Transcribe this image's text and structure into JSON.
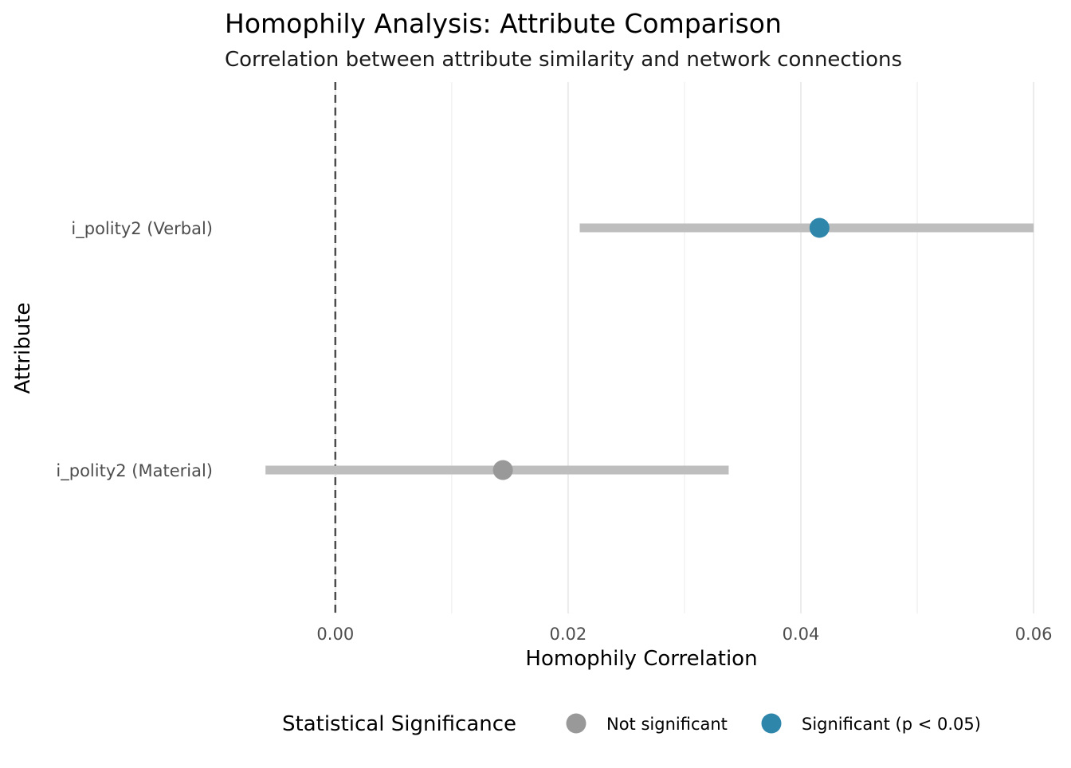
{
  "chart_data": {
    "type": "scatter",
    "title": "Homophily Analysis: Attribute Comparison",
    "subtitle": "Correlation between attribute similarity and network connections",
    "xlabel": "Homophily Correlation",
    "ylabel": "Attribute",
    "xlim": [
      -0.0093,
      0.0602
    ],
    "x_ticks": [
      0.0,
      0.02,
      0.04,
      0.06
    ],
    "x_tick_labels": [
      "0.00",
      "0.02",
      "0.04",
      "0.06"
    ],
    "reference_line": {
      "x": 0,
      "style": "dashed"
    },
    "grid": "vertical",
    "categories": [
      "i_polity2 (Verbal)",
      "i_polity2 (Material)"
    ],
    "series": [
      {
        "category": "i_polity2 (Verbal)",
        "estimate": 0.0416,
        "ci_low": 0.021,
        "ci_high": 0.06,
        "significance": "Significant (p < 0.05)"
      },
      {
        "category": "i_polity2 (Material)",
        "estimate": 0.0144,
        "ci_low": -0.006,
        "ci_high": 0.0338,
        "significance": "Not significant"
      }
    ],
    "legend": {
      "title": "Statistical Significance",
      "placement": "bottom",
      "items": [
        {
          "label": "Not significant",
          "color": "#999999"
        },
        {
          "label": "Significant (p < 0.05)",
          "color": "#2E86AB"
        }
      ]
    },
    "colors": {
      "ci_bar": "#BEBEBE",
      "grid": "#EBEBEB",
      "reference_line": "#4D4D4D",
      "not_significant": "#999999",
      "significant": "#2E86AB"
    }
  }
}
